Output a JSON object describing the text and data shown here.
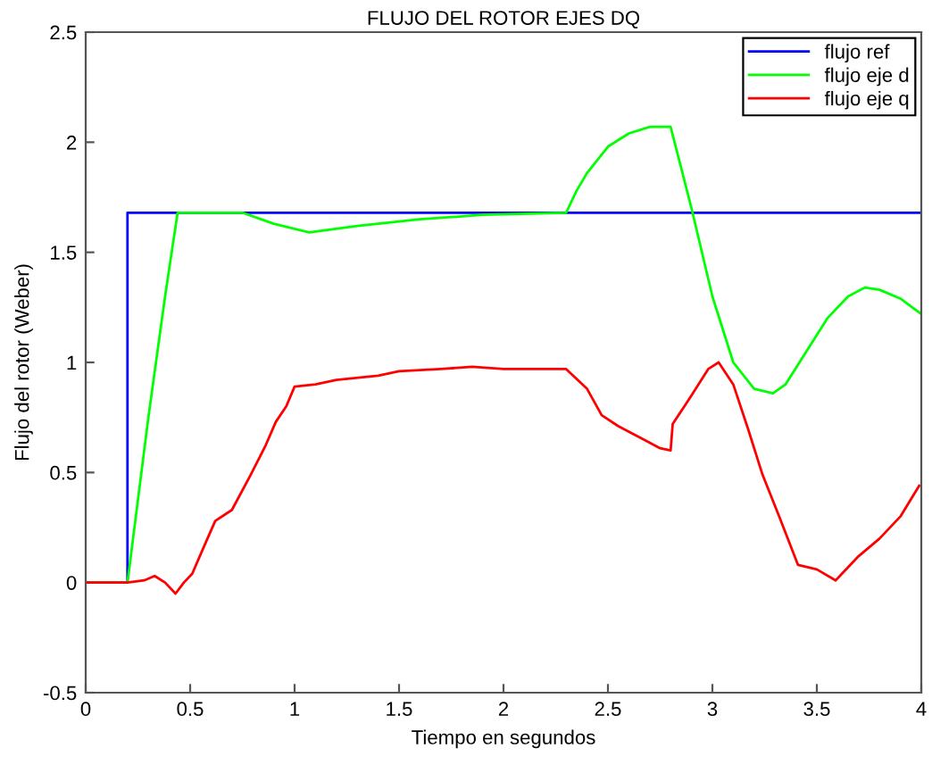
{
  "chart_data": {
    "type": "line",
    "title": "FLUJO DEL ROTOR EJES DQ",
    "xlabel": "Tiempo en segundos",
    "ylabel": "Flujo del rotor (Weber)",
    "xlim": [
      0,
      4
    ],
    "ylim": [
      -0.5,
      2.5
    ],
    "xticks": [
      0,
      0.5,
      1,
      1.5,
      2,
      2.5,
      3,
      3.5,
      4
    ],
    "yticks": [
      -0.5,
      0,
      0.5,
      1,
      1.5,
      2,
      2.5
    ],
    "grid": false,
    "legend": "top right",
    "marker": "none",
    "line_style": "solid",
    "series": [
      {
        "name": "flujo ref",
        "color": "#0000ff",
        "x": [
          0,
          0.2,
          0.2,
          4
        ],
        "values": [
          0,
          0,
          1.68,
          1.68
        ]
      },
      {
        "name": "flujo eje d",
        "color": "#00ff00",
        "x": [
          0,
          0.2,
          0.3,
          0.38,
          0.44,
          0.75,
          0.9,
          1.07,
          1.3,
          1.6,
          1.9,
          2.3,
          2.35,
          2.4,
          2.5,
          2.6,
          2.7,
          2.8,
          2.9,
          3.0,
          3.1,
          3.2,
          3.29,
          3.35,
          3.45,
          3.55,
          3.65,
          3.73,
          3.8,
          3.9,
          4.0
        ],
        "values": [
          0,
          0,
          0.75,
          1.3,
          1.68,
          1.68,
          1.63,
          1.59,
          1.62,
          1.65,
          1.67,
          1.68,
          1.78,
          1.86,
          1.98,
          2.04,
          2.07,
          2.07,
          1.7,
          1.3,
          1.0,
          0.88,
          0.86,
          0.9,
          1.05,
          1.2,
          1.3,
          1.34,
          1.33,
          1.29,
          1.22
        ]
      },
      {
        "name": "flujo eje q",
        "color": "#ff0000",
        "x": [
          0,
          0.2,
          0.28,
          0.33,
          0.38,
          0.43,
          0.47,
          0.51,
          0.56,
          0.62,
          0.7,
          0.79,
          0.86,
          0.91,
          0.96,
          1.0,
          1.1,
          1.2,
          1.4,
          1.5,
          1.7,
          1.85,
          2.0,
          2.3,
          2.4,
          2.47,
          2.55,
          2.67,
          2.75,
          2.8,
          2.81,
          2.9,
          2.98,
          3.03,
          3.1,
          3.17,
          3.24,
          3.32,
          3.41,
          3.5,
          3.59,
          3.7,
          3.8,
          3.9,
          3.99
        ],
        "values": [
          0,
          0,
          0.01,
          0.03,
          0.0,
          -0.05,
          0.0,
          0.04,
          0.15,
          0.28,
          0.33,
          0.49,
          0.62,
          0.73,
          0.8,
          0.89,
          0.9,
          0.92,
          0.94,
          0.96,
          0.97,
          0.98,
          0.97,
          0.97,
          0.88,
          0.76,
          0.71,
          0.65,
          0.61,
          0.6,
          0.72,
          0.85,
          0.97,
          1.0,
          0.9,
          0.7,
          0.49,
          0.3,
          0.08,
          0.06,
          0.01,
          0.12,
          0.2,
          0.3,
          0.44
        ]
      }
    ]
  }
}
